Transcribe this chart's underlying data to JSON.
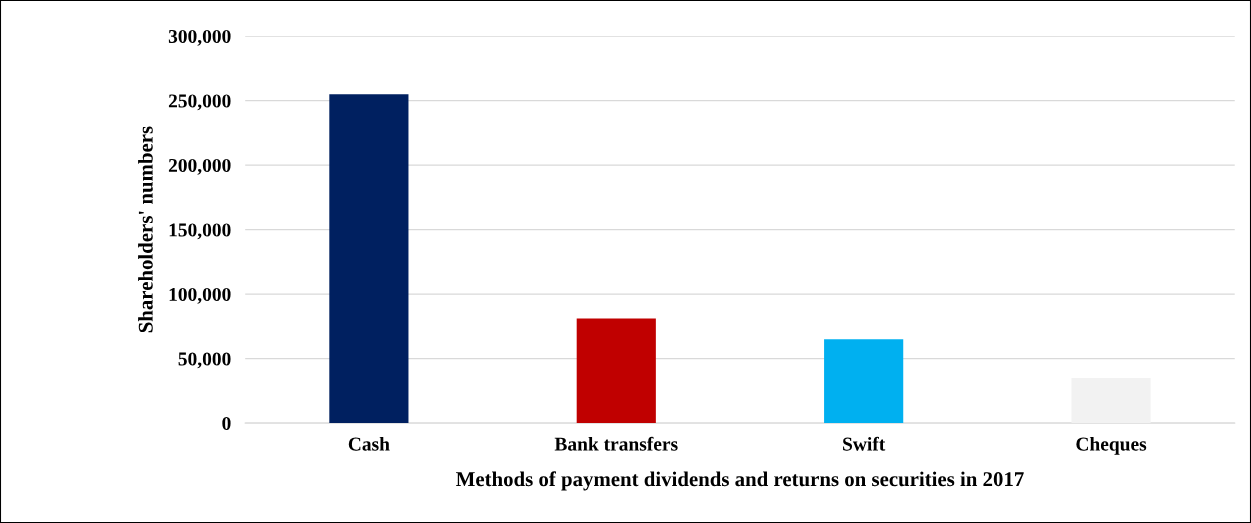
{
  "chart_data": {
    "type": "bar",
    "categories": [
      "Cash",
      "Bank transfers",
      "Swift",
      "Cheques"
    ],
    "values": [
      255000,
      81000,
      65000,
      35000
    ],
    "colors": [
      "#002060",
      "#c00000",
      "#00b0f0",
      "#f2f2f2"
    ],
    "xlabel": "Methods of payment dividends and returns on securities in 2017",
    "ylabel": "Shareholders' numbers",
    "ylim": [
      0,
      300000
    ],
    "yticks": [
      {
        "value": 0,
        "label": "0"
      },
      {
        "value": 50000,
        "label": "50,000"
      },
      {
        "value": 100000,
        "label": "100,000"
      },
      {
        "value": 150000,
        "label": "150,000"
      },
      {
        "value": 200000,
        "label": "200,000"
      },
      {
        "value": 250000,
        "label": "250,000"
      },
      {
        "value": 300000,
        "label": "300,000"
      }
    ],
    "grid": "y"
  }
}
